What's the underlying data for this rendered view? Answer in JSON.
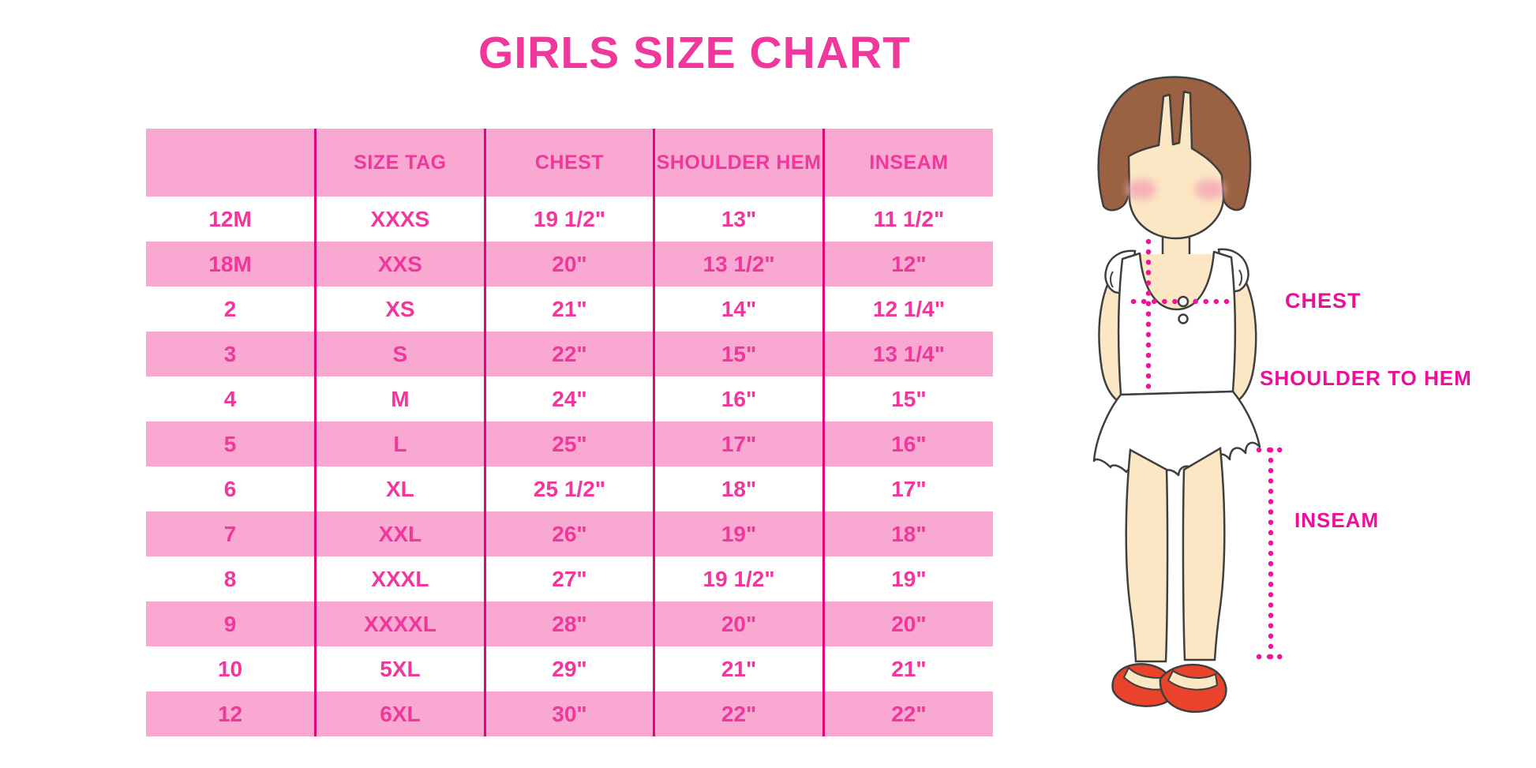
{
  "chart_data": {
    "type": "table",
    "title": "GIRLS SIZE CHART",
    "columns": [
      "",
      "SIZE TAG",
      "CHEST",
      "SHOULDER HEM",
      "INSEAM"
    ],
    "rows": [
      [
        "12M",
        "XXXS",
        "19 1/2\"",
        "13\"",
        "11 1/2\""
      ],
      [
        "18M",
        "XXS",
        "20\"",
        "13 1/2\"",
        "12\""
      ],
      [
        "2",
        "XS",
        "21\"",
        "14\"",
        "12 1/4\""
      ],
      [
        "3",
        "S",
        "22\"",
        "15\"",
        "13 1/4\""
      ],
      [
        "4",
        "M",
        "24\"",
        "16\"",
        "15\""
      ],
      [
        "5",
        "L",
        "25\"",
        "17\"",
        "16\""
      ],
      [
        "6",
        "XL",
        "25 1/2\"",
        "18\"",
        "17\""
      ],
      [
        "7",
        "XXL",
        "26\"",
        "19\"",
        "18\""
      ],
      [
        "8",
        "XXXL",
        "27\"",
        "19 1/2\"",
        "19\""
      ],
      [
        "9",
        "XXXXL",
        "28\"",
        "20\"",
        "20\""
      ],
      [
        "10",
        "5XL",
        "29\"",
        "21\"",
        "21\""
      ],
      [
        "12",
        "6XL",
        "30\"",
        "22\"",
        "22\""
      ]
    ],
    "layout": {
      "striped_rows": true,
      "stripe_color": "#F9A8D2",
      "divider_color": "#E2077C",
      "text_color": "#F0379B"
    }
  },
  "figure_labels": {
    "chest": "CHEST",
    "shoulder_to_hem": "SHOULDER TO HEM",
    "inseam": "INSEAM"
  },
  "colors": {
    "title_pink": "#F0379B",
    "row_pink": "#F9A8D2",
    "divider_magenta": "#E2077C",
    "label_magenta": "#ED0F9C",
    "dotted_line_pink": "#F0129B",
    "hair_brown": "#9A6242",
    "skin": "#FBE7C3",
    "shoe_red": "#E9432C"
  }
}
